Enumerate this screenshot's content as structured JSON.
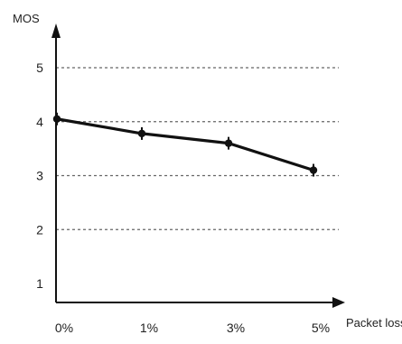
{
  "chart_data": {
    "type": "line",
    "xlabel": "Packet loss",
    "ylabel": "MOS",
    "categories": [
      "0%",
      "1%",
      "3%",
      "5%"
    ],
    "yticks": [
      "1",
      "2",
      "3",
      "4",
      "5"
    ],
    "ylim": [
      0.5,
      5.5
    ],
    "grid": true,
    "series": [
      {
        "values": [
          4.05,
          3.78,
          3.6,
          3.1
        ]
      }
    ],
    "line_color": "#111111",
    "grid_color": "#666666"
  }
}
